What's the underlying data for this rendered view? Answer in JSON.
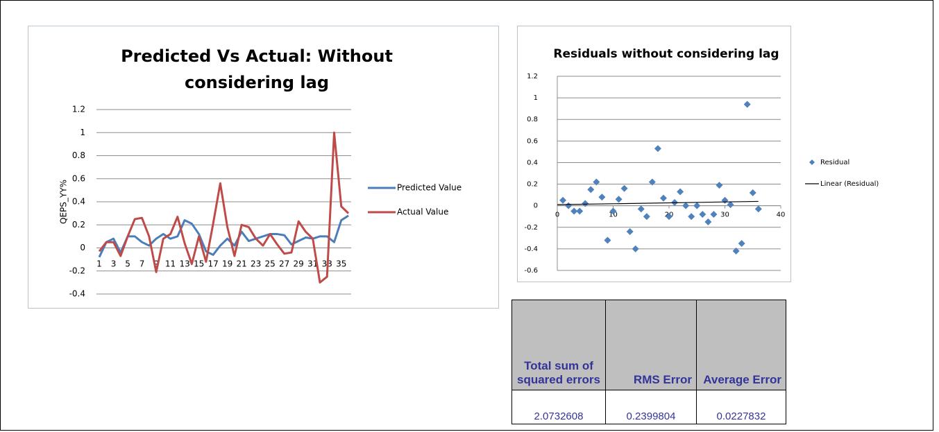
{
  "chart_data": [
    {
      "type": "line",
      "title": "Predicted Vs Actual: Without considering lag",
      "y_label": "QEPS_YY%",
      "categories": [
        1,
        null,
        3,
        null,
        5,
        null,
        7,
        null,
        9,
        null,
        11,
        null,
        13,
        null,
        15,
        null,
        17,
        null,
        19,
        null,
        21,
        null,
        23,
        null,
        25,
        null,
        27,
        null,
        29,
        null,
        31,
        null,
        33,
        null,
        35,
        null
      ],
      "series": [
        {
          "name": "Predicted Value",
          "color": "#4a7ebb",
          "values": [
            -0.08,
            0.05,
            0.08,
            -0.04,
            0.1,
            0.1,
            0.05,
            0.02,
            0.08,
            0.12,
            0.08,
            0.1,
            0.24,
            0.21,
            0.12,
            -0.03,
            -0.06,
            0.02,
            0.08,
            0.02,
            0.14,
            0.06,
            0.08,
            0.1,
            0.12,
            0.12,
            0.11,
            0.03,
            0.06,
            0.09,
            0.08,
            0.1,
            0.1,
            0.05,
            0.24,
            0.28
          ]
        },
        {
          "name": "Actual Value",
          "color": "#be4b48",
          "values": [
            -0.03,
            0.05,
            0.05,
            -0.07,
            0.1,
            0.25,
            0.26,
            0.1,
            -0.21,
            0.08,
            0.12,
            0.27,
            0.04,
            -0.14,
            0.1,
            -0.12,
            0.21,
            0.56,
            0.18,
            -0.07,
            0.2,
            0.18,
            0.08,
            0.02,
            0.12,
            0.03,
            -0.05,
            -0.04,
            0.23,
            0.14,
            0.08,
            -0.3,
            -0.25,
            1.0,
            0.36,
            0.3
          ]
        }
      ],
      "ylim": [
        -0.4,
        1.2
      ],
      "yticks": [
        -0.4,
        -0.2,
        0,
        0.2,
        0.4,
        0.6,
        0.8,
        1,
        1.2
      ],
      "grid": true,
      "legend": "right"
    },
    {
      "type": "scatter",
      "title": "Residuals without considering lag",
      "series": [
        {
          "name": "Residual",
          "color": "#4f81bd",
          "x": [
            1,
            2,
            3,
            4,
            5,
            6,
            7,
            8,
            9,
            10,
            11,
            12,
            13,
            14,
            15,
            16,
            17,
            18,
            19,
            20,
            21,
            22,
            23,
            24,
            25,
            26,
            27,
            28,
            29,
            30,
            31,
            32,
            33,
            34,
            35,
            36
          ],
          "values": [
            0.05,
            0,
            -0.05,
            -0.05,
            0.02,
            0.15,
            0.22,
            0.08,
            -0.32,
            -0.05,
            0.06,
            0.16,
            -0.24,
            -0.4,
            -0.03,
            -0.1,
            0.22,
            0.53,
            0.07,
            -0.1,
            0.03,
            0.13,
            0,
            -0.1,
            0,
            -0.08,
            -0.15,
            -0.08,
            0.19,
            0.05,
            0.01,
            -0.42,
            -0.35,
            0.94,
            0.12,
            -0.03
          ]
        },
        {
          "name": "Linear (Residual)",
          "color": "#000000",
          "x": [
            0,
            36
          ],
          "values": [
            0.01,
            0.04
          ]
        }
      ],
      "xlim": [
        0,
        40
      ],
      "xticks": [
        0,
        10,
        20,
        30,
        40
      ],
      "ylim": [
        -0.6,
        1.2
      ],
      "yticks": [
        -0.6,
        -0.4,
        -0.2,
        0,
        0.2,
        0.4,
        0.6,
        0.8,
        1,
        1.2
      ],
      "grid": true,
      "legend": "right"
    }
  ],
  "table": {
    "header": [
      "Total sum of squared errors",
      "RMS Error",
      "Average Error"
    ],
    "rows": [
      [
        2.0732608,
        0.2399804,
        0.0227832
      ]
    ]
  }
}
